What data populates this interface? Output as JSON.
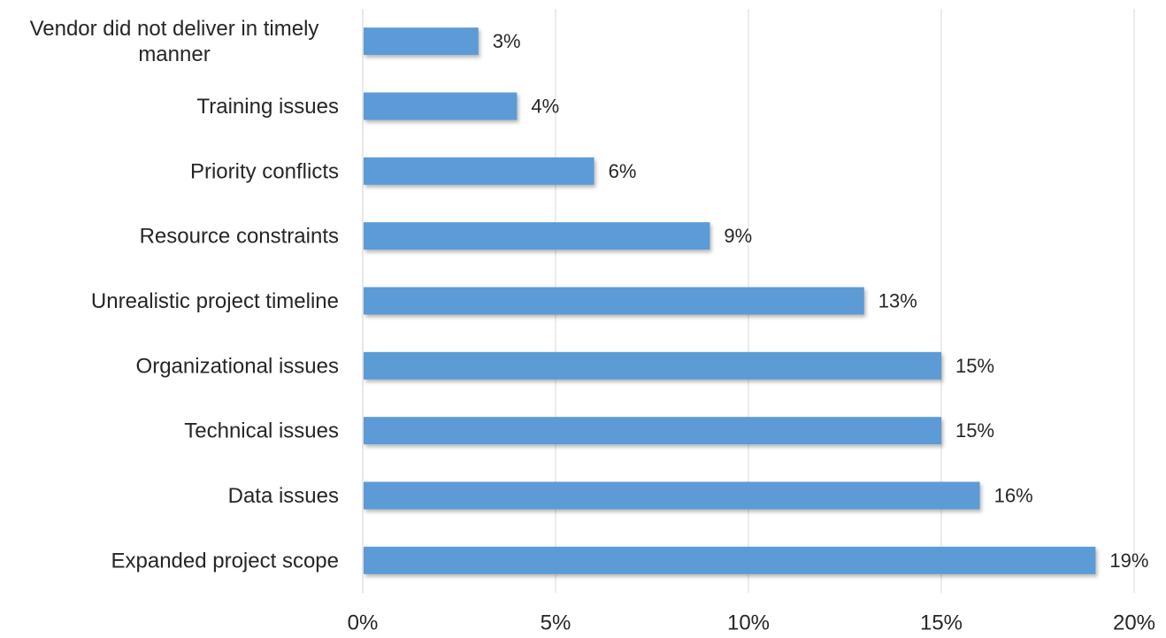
{
  "chart_data": {
    "type": "bar",
    "orientation": "horizontal",
    "categories": [
      "Vendor did not deliver in timely manner",
      "Training issues",
      "Priority conflicts",
      "Resource constraints",
      "Unrealistic project timeline",
      "Organizational issues",
      "Technical issues",
      "Data issues",
      "Expanded project scope"
    ],
    "category_label_lines": [
      [
        "Vendor did not deliver in timely",
        "manner"
      ],
      [
        "Training issues"
      ],
      [
        "Priority conflicts"
      ],
      [
        "Resource constraints"
      ],
      [
        "Unrealistic project timeline"
      ],
      [
        "Organizational issues"
      ],
      [
        "Technical issues"
      ],
      [
        "Data issues"
      ],
      [
        "Expanded project scope"
      ]
    ],
    "values": [
      3,
      4,
      6,
      9,
      13,
      15,
      15,
      16,
      19
    ],
    "data_labels": [
      "3%",
      "4%",
      "6%",
      "9%",
      "13%",
      "15%",
      "15%",
      "16%",
      "19%"
    ],
    "x_ticks": [
      0,
      5,
      10,
      15,
      20
    ],
    "x_tick_labels": [
      "0%",
      "5%",
      "10%",
      "15%",
      "20%"
    ],
    "xlim": [
      0,
      20
    ],
    "grid": "vertical",
    "legend": "none",
    "bar_color": "#5b9bd5",
    "grid_color": "#d9d9d9",
    "title": "",
    "xlabel": "",
    "ylabel": ""
  }
}
